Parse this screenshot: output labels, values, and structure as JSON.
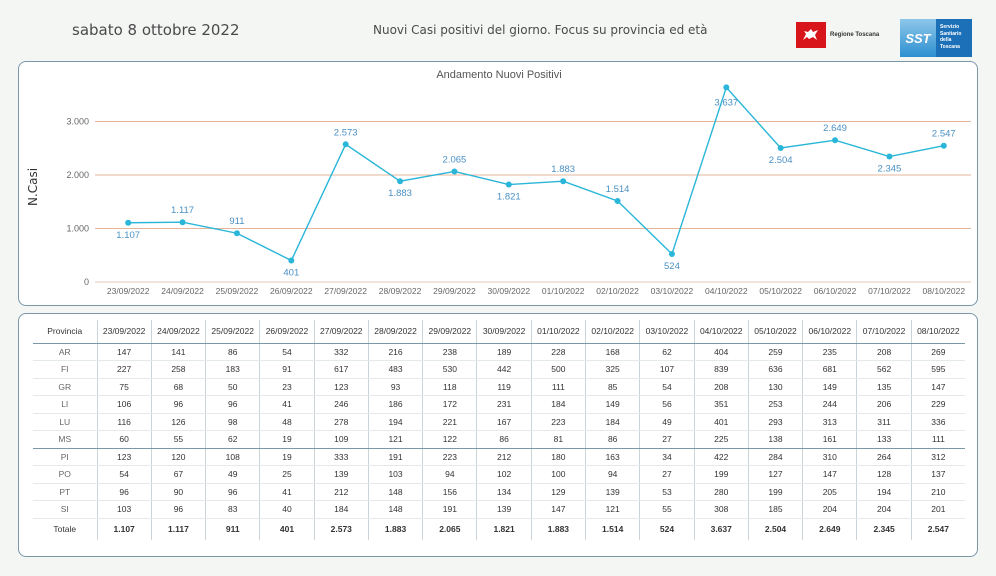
{
  "header": {
    "date": "sabato 8 ottobre 2022",
    "subtitle": "Nuovi Casi positivi del giorno. Focus su provincia ed età",
    "logo_regione": "Regione Toscana",
    "logo_sst_mark": "SST",
    "logo_sst_text": [
      "Servizio",
      "Sanitario",
      "della",
      "Toscana"
    ]
  },
  "colors": {
    "line": "#29b6d8",
    "label": "#4a90c4",
    "gridline": "#e6b49a",
    "border": "#7b97a8",
    "flag": "#d7151a",
    "sst_blue": "#1b70b8"
  },
  "chart_data": {
    "type": "line",
    "title": "Andamento Nuovi Positivi",
    "ylabel": "N.Casi",
    "xlabel": "",
    "x": [
      "23/09/2022",
      "24/09/2022",
      "25/09/2022",
      "26/09/2022",
      "27/09/2022",
      "28/09/2022",
      "29/09/2022",
      "30/09/2022",
      "01/10/2022",
      "02/10/2022",
      "03/10/2022",
      "04/10/2022",
      "05/10/2022",
      "06/10/2022",
      "07/10/2022",
      "08/10/2022"
    ],
    "values": [
      1107,
      1117,
      911,
      401,
      2573,
      1883,
      2065,
      1821,
      1883,
      1514,
      524,
      3637,
      2504,
      2649,
      2345,
      2547
    ],
    "labels": [
      "1.107",
      "1.117",
      "911",
      "401",
      "2.573",
      "1.883",
      "2.065",
      "1.821",
      "1.883",
      "1.514",
      "524",
      "3.637",
      "2.504",
      "2.649",
      "2.345",
      "2.547"
    ],
    "yticks": [
      0,
      1000,
      2000,
      3000
    ],
    "ytick_labels": [
      "0",
      "1.000",
      "2.000",
      "3.000"
    ],
    "ylim": [
      0,
      3700
    ],
    "grid": true
  },
  "table": {
    "header_label": "Provincia",
    "dates": [
      "23/09/2022",
      "24/09/2022",
      "25/09/2022",
      "26/09/2022",
      "27/09/2022",
      "28/09/2022",
      "29/09/2022",
      "30/09/2022",
      "01/10/2022",
      "02/10/2022",
      "03/10/2022",
      "04/10/2022",
      "05/10/2022",
      "06/10/2022",
      "07/10/2022",
      "08/10/2022"
    ],
    "rows": [
      {
        "prov": "AR",
        "values": [
          "147",
          "141",
          "86",
          "54",
          "332",
          "216",
          "238",
          "189",
          "228",
          "168",
          "62",
          "404",
          "259",
          "235",
          "208",
          "269"
        ]
      },
      {
        "prov": "FI",
        "values": [
          "227",
          "258",
          "183",
          "91",
          "617",
          "483",
          "530",
          "442",
          "500",
          "325",
          "107",
          "839",
          "636",
          "681",
          "562",
          "595"
        ]
      },
      {
        "prov": "GR",
        "values": [
          "75",
          "68",
          "50",
          "23",
          "123",
          "93",
          "118",
          "119",
          "111",
          "85",
          "54",
          "208",
          "130",
          "149",
          "135",
          "147"
        ]
      },
      {
        "prov": "LI",
        "values": [
          "106",
          "96",
          "96",
          "41",
          "246",
          "186",
          "172",
          "231",
          "184",
          "149",
          "56",
          "351",
          "253",
          "244",
          "206",
          "229"
        ]
      },
      {
        "prov": "LU",
        "values": [
          "116",
          "126",
          "98",
          "48",
          "278",
          "194",
          "221",
          "167",
          "223",
          "184",
          "49",
          "401",
          "293",
          "313",
          "311",
          "336"
        ]
      },
      {
        "prov": "MS",
        "values": [
          "60",
          "55",
          "62",
          "19",
          "109",
          "121",
          "122",
          "86",
          "81",
          "86",
          "27",
          "225",
          "138",
          "161",
          "133",
          "111"
        ]
      },
      {
        "prov": "PI",
        "values": [
          "123",
          "120",
          "108",
          "19",
          "333",
          "191",
          "223",
          "212",
          "180",
          "163",
          "34",
          "422",
          "284",
          "310",
          "264",
          "312"
        ]
      },
      {
        "prov": "PO",
        "values": [
          "54",
          "67",
          "49",
          "25",
          "139",
          "103",
          "94",
          "102",
          "100",
          "94",
          "27",
          "199",
          "127",
          "147",
          "128",
          "137"
        ]
      },
      {
        "prov": "PT",
        "values": [
          "96",
          "90",
          "96",
          "41",
          "212",
          "148",
          "156",
          "134",
          "129",
          "139",
          "53",
          "280",
          "199",
          "205",
          "194",
          "210"
        ]
      },
      {
        "prov": "SI",
        "values": [
          "103",
          "96",
          "83",
          "40",
          "184",
          "148",
          "191",
          "139",
          "147",
          "121",
          "55",
          "308",
          "185",
          "204",
          "204",
          "201"
        ]
      }
    ],
    "total_label": "Totale",
    "totals": [
      "1.107",
      "1.117",
      "911",
      "401",
      "2.573",
      "1.883",
      "2.065",
      "1.821",
      "1.883",
      "1.514",
      "524",
      "3.637",
      "2.504",
      "2.649",
      "2.345",
      "2.547"
    ]
  }
}
